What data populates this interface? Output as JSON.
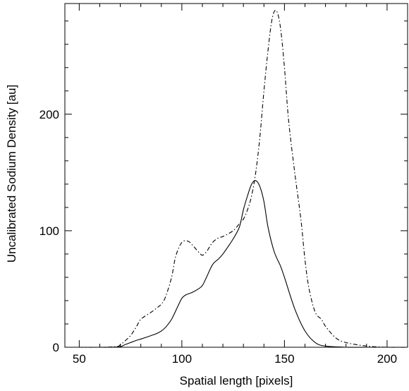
{
  "chart_data": {
    "type": "line",
    "title": "",
    "xlabel": "Spatial length [pixels]",
    "ylabel": "Uncalibrated Sodium Density [au]",
    "xlim": [
      43,
      210
    ],
    "ylim": [
      0,
      295
    ],
    "xticks": [
      50,
      100,
      150,
      200
    ],
    "yticks": [
      0,
      100,
      200
    ],
    "grid": false,
    "legend": "none",
    "series": [
      {
        "style": "solid",
        "x": [
          50,
          60,
          65,
          70,
          72,
          75,
          78,
          80,
          85,
          88,
          90,
          92,
          95,
          98,
          100,
          102,
          105,
          108,
          110,
          112,
          115,
          118,
          120,
          122,
          125,
          128,
          130,
          132,
          134,
          136,
          138,
          140,
          142,
          145,
          148,
          150,
          155,
          160,
          165,
          170,
          180,
          190,
          200,
          210
        ],
        "values": [
          0,
          0,
          0,
          0.5,
          2,
          4,
          6,
          7,
          10,
          12,
          14,
          17,
          24,
          35,
          42,
          45,
          47,
          50,
          53,
          60,
          71,
          76,
          80,
          85,
          93,
          103,
          118,
          130,
          140,
          143,
          138,
          125,
          103,
          82,
          70,
          60,
          33,
          14,
          4,
          1,
          0,
          0,
          0,
          0
        ]
      },
      {
        "style": "dash-dot",
        "x": [
          50,
          60,
          68,
          70,
          72,
          75,
          78,
          80,
          85,
          88,
          90,
          92,
          95,
          97,
          100,
          103,
          105,
          108,
          110,
          112,
          115,
          118,
          120,
          125,
          128,
          130,
          132,
          134,
          136,
          138,
          140,
          142,
          144,
          146,
          148,
          150,
          152,
          155,
          158,
          160,
          162,
          165,
          168,
          170,
          175,
          180,
          190,
          200,
          210
        ],
        "values": [
          0,
          0,
          0.5,
          2,
          5,
          10,
          18,
          24,
          30,
          34,
          37,
          43,
          60,
          78,
          90,
          91,
          88,
          82,
          79,
          82,
          90,
          94,
          95,
          100,
          106,
          110,
          118,
          130,
          150,
          180,
          220,
          255,
          282,
          289,
          275,
          240,
          195,
          150,
          110,
          75,
          50,
          30,
          24,
          18,
          8,
          4,
          1,
          0,
          0
        ]
      }
    ]
  }
}
